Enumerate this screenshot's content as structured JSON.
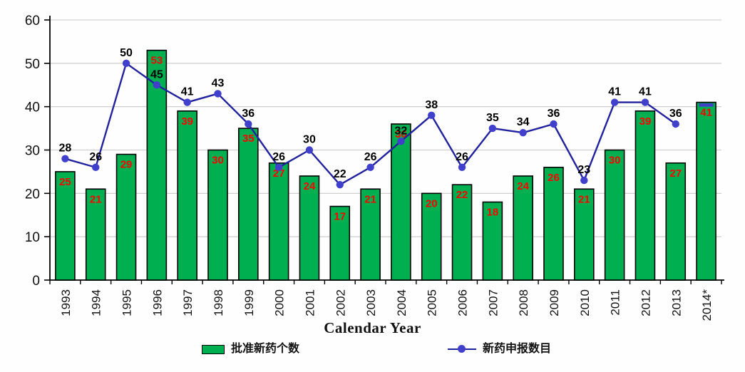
{
  "chart": {
    "xlabel": "Calendar Year",
    "legend": {
      "bar_label": "批准新药个数",
      "line_label": "新药申报数目"
    },
    "colors": {
      "bar_fill": "#00b050",
      "bar_stroke": "#000000",
      "bar_label": "#ff0000",
      "line": "#22229e",
      "marker": "#4040cc",
      "line_label": "#000000",
      "gridline": "#c9c9c9",
      "axis": "#000000",
      "background": "#fefefe"
    }
  },
  "chart_data": {
    "type": "bar+line",
    "title": "",
    "xlabel": "Calendar Year",
    "ylabel": "",
    "ylim": [
      0,
      60
    ],
    "yticks": [
      0,
      10,
      20,
      30,
      40,
      50,
      60
    ],
    "grid": "horizontal",
    "legend_position": "bottom",
    "categories": [
      "1993",
      "1994",
      "1995",
      "1996",
      "1997",
      "1998",
      "1999",
      "2000",
      "2001",
      "2002",
      "2003",
      "2004",
      "2005",
      "2006",
      "2007",
      "2008",
      "2009",
      "2010",
      "2011",
      "2012",
      "2013",
      "2014*"
    ],
    "series": [
      {
        "name": "批准新药个数",
        "type": "bar",
        "color": "#00b050",
        "label_color": "#ff0000",
        "values": [
          25,
          21,
          29,
          53,
          39,
          30,
          35,
          27,
          24,
          17,
          21,
          36,
          20,
          22,
          18,
          24,
          26,
          21,
          30,
          39,
          27,
          41
        ]
      },
      {
        "name": "新药申报数目",
        "type": "line",
        "color": "#22229e",
        "marker_color": "#4040cc",
        "label_color": "#000000",
        "values": [
          28,
          26,
          50,
          45,
          41,
          43,
          36,
          26,
          30,
          22,
          26,
          32,
          38,
          26,
          35,
          34,
          36,
          23,
          41,
          41,
          36,
          null
        ]
      }
    ],
    "notes": "2014* has no labeled line value; a partial blue marker is visible at the top of the 2014* bar"
  }
}
